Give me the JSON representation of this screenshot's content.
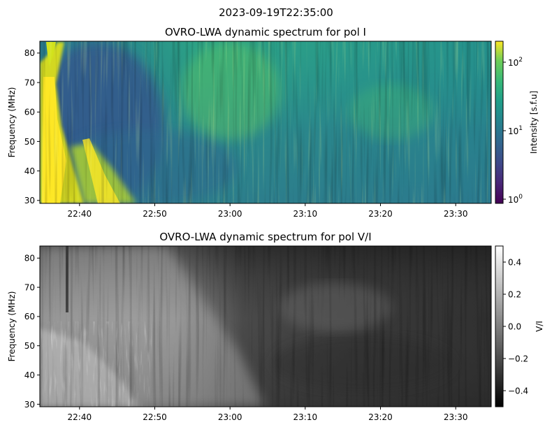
{
  "suptitle": "2023-09-19T22:35:00",
  "chart_data": [
    {
      "type": "heatmap",
      "title": "OVRO-LWA dynamic spectrum for pol I",
      "xlabel": "",
      "ylabel": "Frequency (MHz)",
      "x_ticks": [
        "22:40",
        "22:50",
        "23:00",
        "23:10",
        "23:20",
        "23:30"
      ],
      "x_range": [
        "22:35",
        "23:35"
      ],
      "y_ticks": [
        30,
        40,
        50,
        60,
        70,
        80
      ],
      "y_range": [
        29,
        84
      ],
      "colormap": "viridis",
      "colorbar": {
        "label": "Intensity [s.f.u]",
        "scale": "log",
        "ticks": [
          {
            "base": "10",
            "exp": "0",
            "value": 1
          },
          {
            "base": "10",
            "exp": "1",
            "value": 10
          },
          {
            "base": "10",
            "exp": "2",
            "value": 100
          }
        ],
        "range": [
          0.8,
          200
        ]
      }
    },
    {
      "type": "heatmap",
      "title": "OVRO-LWA dynamic spectrum for pol V/I",
      "xlabel": "",
      "ylabel": "Frequency (MHz)",
      "x_ticks": [
        "22:40",
        "22:50",
        "23:00",
        "23:10",
        "23:20",
        "23:30"
      ],
      "x_range": [
        "22:35",
        "23:35"
      ],
      "y_ticks": [
        30,
        40,
        50,
        60,
        70,
        80
      ],
      "y_range": [
        29,
        84
      ],
      "colormap": "gray",
      "colorbar": {
        "label": "V/I",
        "scale": "linear",
        "ticks": [
          {
            "label": "0.4",
            "value": 0.4
          },
          {
            "label": "0.2",
            "value": 0.2
          },
          {
            "label": "0.0",
            "value": 0.0
          },
          {
            "label": "−0.2",
            "value": -0.2
          },
          {
            "label": "−0.4",
            "value": -0.4
          }
        ],
        "range": [
          -0.5,
          0.5
        ]
      }
    }
  ]
}
